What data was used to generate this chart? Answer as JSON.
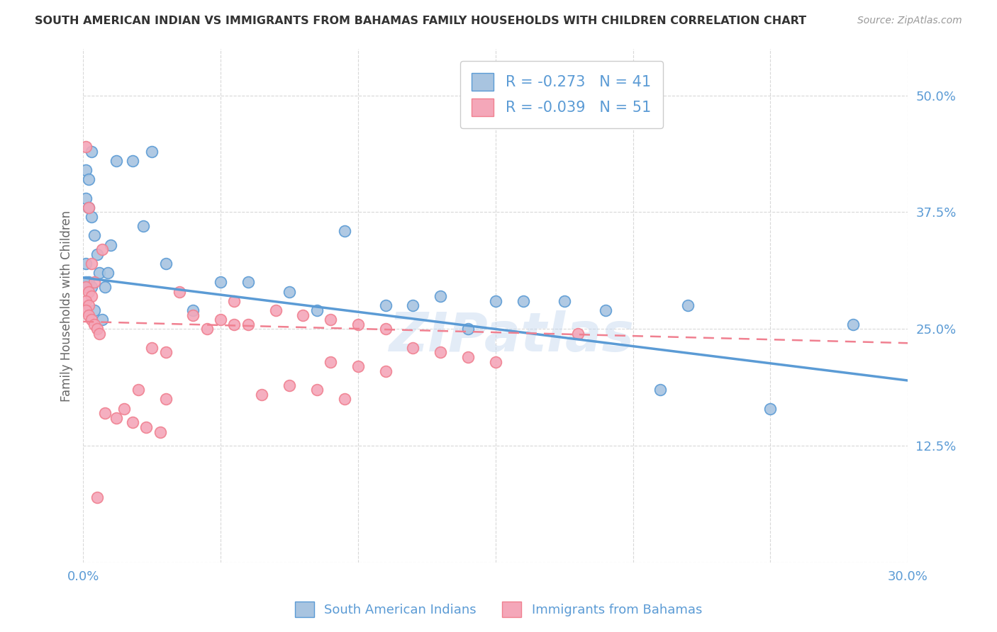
{
  "title": "SOUTH AMERICAN INDIAN VS IMMIGRANTS FROM BAHAMAS FAMILY HOUSEHOLDS WITH CHILDREN CORRELATION CHART",
  "source": "Source: ZipAtlas.com",
  "ylabel": "Family Households with Children",
  "xlabel": "",
  "xlim": [
    0.0,
    0.3
  ],
  "ylim": [
    0.0,
    0.55
  ],
  "ytick_vals": [
    0.0,
    0.125,
    0.25,
    0.375,
    0.5
  ],
  "ytick_labels": [
    "",
    "12.5%",
    "25.0%",
    "37.5%",
    "50.0%"
  ],
  "xtick_vals": [
    0.0,
    0.05,
    0.1,
    0.15,
    0.2,
    0.25,
    0.3
  ],
  "xtick_labels": [
    "0.0%",
    "",
    "",
    "",
    "",
    "",
    "30.0%"
  ],
  "blue_R": -0.273,
  "blue_N": 41,
  "pink_R": -0.039,
  "pink_N": 51,
  "blue_color": "#a8c4e0",
  "pink_color": "#f4a7b9",
  "blue_line_color": "#5b9bd5",
  "pink_line_color": "#f08090",
  "legend_label_blue": "South American Indians",
  "legend_label_pink": "Immigrants from Bahamas",
  "blue_line_x0": 0.0,
  "blue_line_y0": 0.305,
  "blue_line_x1": 0.3,
  "blue_line_y1": 0.195,
  "pink_line_x0": 0.0,
  "pink_line_y0": 0.258,
  "pink_line_x1": 0.3,
  "pink_line_y1": 0.235,
  "blue_scatter_x": [
    0.003,
    0.012,
    0.018,
    0.025,
    0.001,
    0.002,
    0.001,
    0.002,
    0.003,
    0.004,
    0.005,
    0.006,
    0.001,
    0.002,
    0.003,
    0.022,
    0.008,
    0.009,
    0.01,
    0.03,
    0.05,
    0.075,
    0.12,
    0.15,
    0.085,
    0.095,
    0.175,
    0.19,
    0.22,
    0.28,
    0.001,
    0.004,
    0.007,
    0.04,
    0.06,
    0.11,
    0.13,
    0.14,
    0.16,
    0.21,
    0.25
  ],
  "blue_scatter_y": [
    0.44,
    0.43,
    0.43,
    0.44,
    0.42,
    0.41,
    0.39,
    0.38,
    0.37,
    0.35,
    0.33,
    0.31,
    0.32,
    0.3,
    0.295,
    0.36,
    0.295,
    0.31,
    0.34,
    0.32,
    0.3,
    0.29,
    0.275,
    0.28,
    0.27,
    0.355,
    0.28,
    0.27,
    0.275,
    0.255,
    0.3,
    0.27,
    0.26,
    0.27,
    0.3,
    0.275,
    0.285,
    0.25,
    0.28,
    0.185,
    0.165
  ],
  "pink_scatter_x": [
    0.001,
    0.002,
    0.003,
    0.004,
    0.001,
    0.002,
    0.003,
    0.001,
    0.002,
    0.001,
    0.002,
    0.003,
    0.004,
    0.005,
    0.006,
    0.007,
    0.055,
    0.07,
    0.08,
    0.09,
    0.1,
    0.11,
    0.04,
    0.05,
    0.06,
    0.035,
    0.045,
    0.055,
    0.025,
    0.03,
    0.12,
    0.13,
    0.14,
    0.15,
    0.18,
    0.09,
    0.1,
    0.11,
    0.02,
    0.03,
    0.015,
    0.005,
    0.008,
    0.012,
    0.018,
    0.023,
    0.028,
    0.075,
    0.085,
    0.065,
    0.095
  ],
  "pink_scatter_y": [
    0.445,
    0.38,
    0.32,
    0.3,
    0.295,
    0.29,
    0.285,
    0.28,
    0.275,
    0.27,
    0.265,
    0.26,
    0.255,
    0.25,
    0.245,
    0.335,
    0.28,
    0.27,
    0.265,
    0.26,
    0.255,
    0.25,
    0.265,
    0.26,
    0.255,
    0.29,
    0.25,
    0.255,
    0.23,
    0.225,
    0.23,
    0.225,
    0.22,
    0.215,
    0.245,
    0.215,
    0.21,
    0.205,
    0.185,
    0.175,
    0.165,
    0.07,
    0.16,
    0.155,
    0.15,
    0.145,
    0.14,
    0.19,
    0.185,
    0.18,
    0.175
  ],
  "watermark": "ZIPatlas",
  "background_color": "#ffffff",
  "grid_color": "#d8d8d8"
}
